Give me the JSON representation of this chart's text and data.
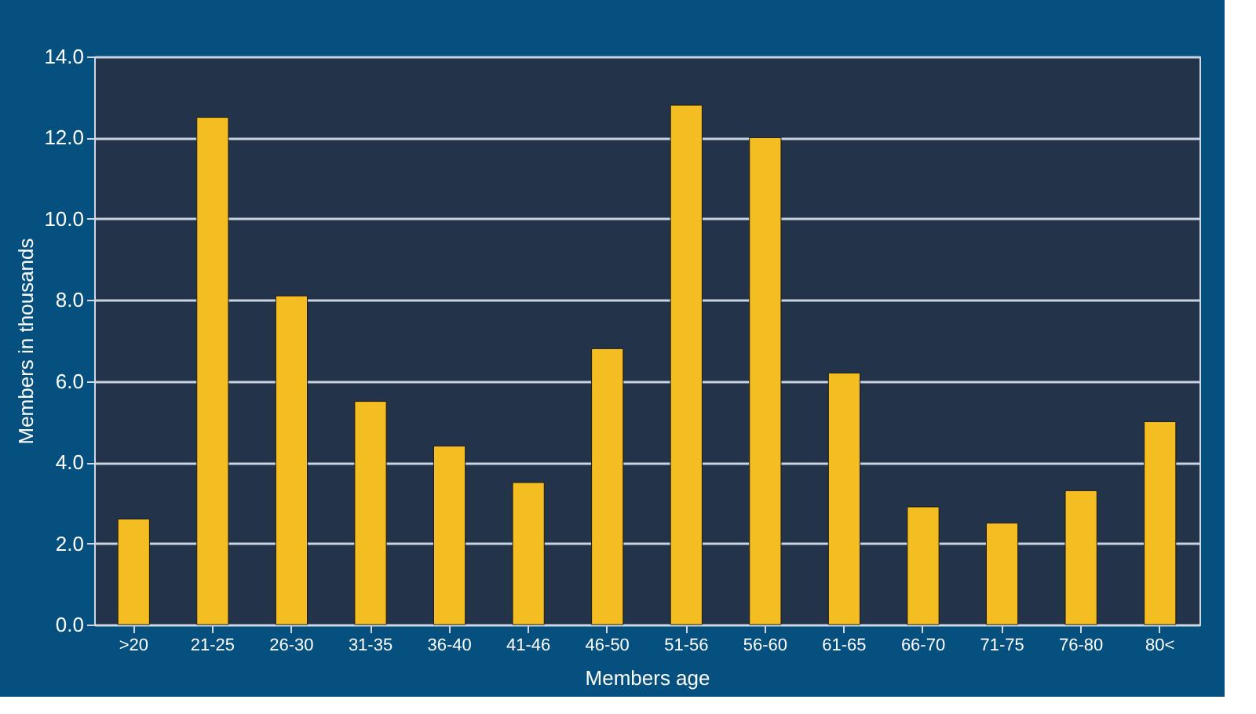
{
  "chart_data": {
    "type": "bar",
    "xlabel": "Members age",
    "ylabel": "Members in thousands",
    "categories": [
      ">20",
      "21-25",
      "26-30",
      "31-35",
      "36-40",
      "41-46",
      "46-50",
      "51-56",
      "56-60",
      "61-65",
      "66-70",
      "71-75",
      "76-80",
      "80<"
    ],
    "values": [
      2.6,
      12.5,
      8.1,
      5.5,
      4.4,
      3.5,
      6.8,
      12.8,
      12.0,
      6.2,
      2.9,
      2.5,
      3.3,
      5.0
    ],
    "color": "#f4be22",
    "ylim": [
      0,
      14
    ],
    "yticks": [
      {
        "value": 0,
        "label": "0.0"
      },
      {
        "value": 2,
        "label": "2.0"
      },
      {
        "value": 4,
        "label": "4.0"
      },
      {
        "value": 6,
        "label": "6.0"
      },
      {
        "value": 8,
        "label": "8.0"
      },
      {
        "value": 10,
        "label": "10.0"
      },
      {
        "value": 12,
        "label": "12.0"
      },
      {
        "value": 14,
        "label": "14.0"
      }
    ],
    "grid": "y"
  }
}
